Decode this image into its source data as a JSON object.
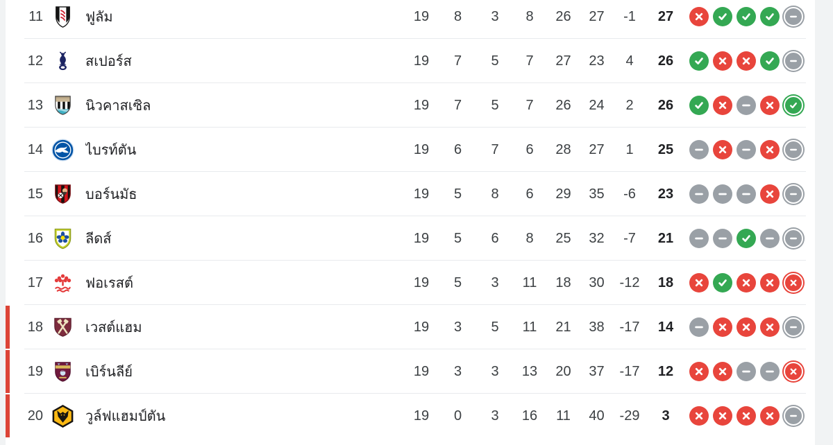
{
  "page": {
    "background_color": "#f1f3f4",
    "card_background_color": "#ffffff"
  },
  "colors": {
    "win": "#34a853",
    "loss": "#e8453c",
    "draw": "#9aa0a6",
    "relegation_bar": "#dc4437",
    "divider": "#e8eaed",
    "stat_text": "#3c4043",
    "points_text": "#202124"
  },
  "form_icons": {
    "win": "check-circle-icon",
    "loss": "x-circle-icon",
    "draw": "dash-circle-icon"
  },
  "standings": {
    "rows": [
      {
        "position": "11",
        "team_name": "ฟูลัม",
        "crest": "fulham",
        "played": "19",
        "won": "8",
        "drawn": "3",
        "lost": "8",
        "goals_for": "26",
        "goals_against": "27",
        "goal_diff": "-1",
        "points": "27",
        "form": [
          "loss",
          "win",
          "win",
          "win",
          "draw"
        ],
        "relegation_zone": false
      },
      {
        "position": "12",
        "team_name": "สเปอร์ส",
        "crest": "spurs",
        "played": "19",
        "won": "7",
        "drawn": "5",
        "lost": "7",
        "goals_for": "27",
        "goals_against": "23",
        "goal_diff": "4",
        "points": "26",
        "form": [
          "win",
          "loss",
          "loss",
          "win",
          "draw"
        ],
        "relegation_zone": false
      },
      {
        "position": "13",
        "team_name": "นิวคาสเซิล",
        "crest": "newcastle",
        "played": "19",
        "won": "7",
        "drawn": "5",
        "lost": "7",
        "goals_for": "26",
        "goals_against": "24",
        "goal_diff": "2",
        "points": "26",
        "form": [
          "win",
          "loss",
          "draw",
          "loss",
          "win"
        ],
        "relegation_zone": false
      },
      {
        "position": "14",
        "team_name": "ไบรท์ตัน",
        "crest": "brighton",
        "played": "19",
        "won": "6",
        "drawn": "7",
        "lost": "6",
        "goals_for": "28",
        "goals_against": "27",
        "goal_diff": "1",
        "points": "25",
        "form": [
          "draw",
          "loss",
          "draw",
          "loss",
          "draw"
        ],
        "relegation_zone": false
      },
      {
        "position": "15",
        "team_name": "บอร์นมัธ",
        "crest": "bournemouth",
        "played": "19",
        "won": "5",
        "drawn": "8",
        "lost": "6",
        "goals_for": "29",
        "goals_against": "35",
        "goal_diff": "-6",
        "points": "23",
        "form": [
          "draw",
          "draw",
          "draw",
          "loss",
          "draw"
        ],
        "relegation_zone": false
      },
      {
        "position": "16",
        "team_name": "ลีดส์",
        "crest": "leeds",
        "played": "19",
        "won": "5",
        "drawn": "6",
        "lost": "8",
        "goals_for": "25",
        "goals_against": "32",
        "goal_diff": "-7",
        "points": "21",
        "form": [
          "draw",
          "draw",
          "win",
          "draw",
          "draw"
        ],
        "relegation_zone": false
      },
      {
        "position": "17",
        "team_name": "ฟอเรสต์",
        "crest": "forest",
        "played": "19",
        "won": "5",
        "drawn": "3",
        "lost": "11",
        "goals_for": "18",
        "goals_against": "30",
        "goal_diff": "-12",
        "points": "18",
        "form": [
          "loss",
          "win",
          "loss",
          "loss",
          "loss"
        ],
        "relegation_zone": false
      },
      {
        "position": "18",
        "team_name": "เวสต์แฮม",
        "crest": "westham",
        "played": "19",
        "won": "3",
        "drawn": "5",
        "lost": "11",
        "goals_for": "21",
        "goals_against": "38",
        "goal_diff": "-17",
        "points": "14",
        "form": [
          "draw",
          "loss",
          "loss",
          "loss",
          "draw"
        ],
        "relegation_zone": true
      },
      {
        "position": "19",
        "team_name": "เบิร์นลีย์",
        "crest": "burnley",
        "played": "19",
        "won": "3",
        "drawn": "3",
        "lost": "13",
        "goals_for": "20",
        "goals_against": "37",
        "goal_diff": "-17",
        "points": "12",
        "form": [
          "loss",
          "loss",
          "draw",
          "draw",
          "loss"
        ],
        "relegation_zone": true
      },
      {
        "position": "20",
        "team_name": "วูล์ฟแฮมป์ตัน",
        "crest": "wolves",
        "played": "19",
        "won": "0",
        "drawn": "3",
        "lost": "16",
        "goals_for": "11",
        "goals_against": "40",
        "goal_diff": "-29",
        "points": "3",
        "form": [
          "loss",
          "loss",
          "loss",
          "loss",
          "draw"
        ],
        "relegation_zone": true
      }
    ]
  }
}
